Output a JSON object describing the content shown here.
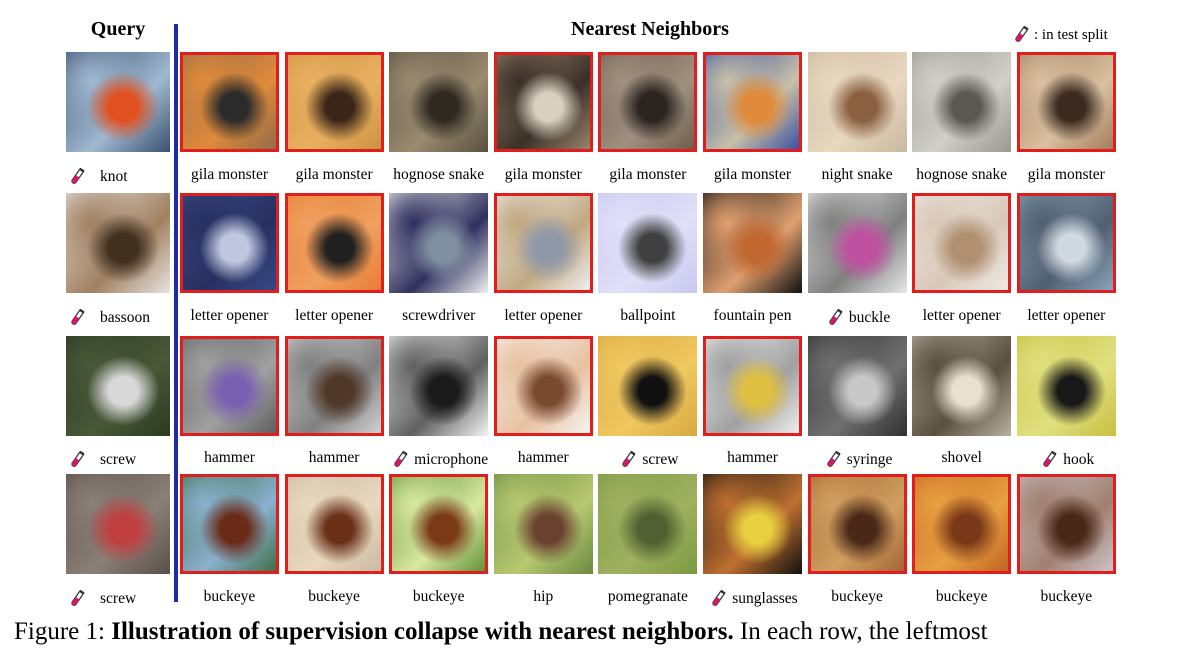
{
  "header": {
    "query": "Query",
    "neighbors": "Nearest Neighbors",
    "legend": ": in test split"
  },
  "colors": {
    "outline": "#e01e1e",
    "divider": "#1e2aa8",
    "flask": "#d6176b"
  },
  "rows": [
    {
      "query": {
        "label": "knot",
        "test_split": true
      },
      "neighbors": [
        {
          "label": "gila monster",
          "outlined": true,
          "test_split": false
        },
        {
          "label": "gila monster",
          "outlined": true,
          "test_split": false
        },
        {
          "label": "hognose snake",
          "outlined": false,
          "test_split": false
        },
        {
          "label": "gila monster",
          "outlined": true,
          "test_split": false
        },
        {
          "label": "gila monster",
          "outlined": true,
          "test_split": false
        },
        {
          "label": "gila monster",
          "outlined": true,
          "test_split": false
        },
        {
          "label": "night snake",
          "outlined": false,
          "test_split": false
        },
        {
          "label": "hognose snake",
          "outlined": false,
          "test_split": false
        },
        {
          "label": "gila monster",
          "outlined": true,
          "test_split": false
        }
      ]
    },
    {
      "query": {
        "label": "bassoon",
        "test_split": true
      },
      "neighbors": [
        {
          "label": "letter opener",
          "outlined": true,
          "test_split": false
        },
        {
          "label": "letter opener",
          "outlined": true,
          "test_split": false
        },
        {
          "label": "screwdriver",
          "outlined": false,
          "test_split": false
        },
        {
          "label": "letter opener",
          "outlined": true,
          "test_split": false
        },
        {
          "label": "ballpoint",
          "outlined": false,
          "test_split": false
        },
        {
          "label": "fountain pen",
          "outlined": false,
          "test_split": false
        },
        {
          "label": "buckle",
          "outlined": false,
          "test_split": true
        },
        {
          "label": "letter opener",
          "outlined": true,
          "test_split": false
        },
        {
          "label": "letter opener",
          "outlined": true,
          "test_split": false
        }
      ]
    },
    {
      "query": {
        "label": "screw",
        "test_split": true
      },
      "neighbors": [
        {
          "label": "hammer",
          "outlined": true,
          "test_split": false
        },
        {
          "label": "hammer",
          "outlined": true,
          "test_split": false
        },
        {
          "label": "microphone",
          "outlined": false,
          "test_split": true
        },
        {
          "label": "hammer",
          "outlined": true,
          "test_split": false
        },
        {
          "label": "screw",
          "outlined": false,
          "test_split": true
        },
        {
          "label": "hammer",
          "outlined": true,
          "test_split": false
        },
        {
          "label": "syringe",
          "outlined": false,
          "test_split": true
        },
        {
          "label": "shovel",
          "outlined": false,
          "test_split": false
        },
        {
          "label": "hook",
          "outlined": false,
          "test_split": true
        }
      ]
    },
    {
      "query": {
        "label": "screw",
        "test_split": true
      },
      "neighbors": [
        {
          "label": "buckeye",
          "outlined": true,
          "test_split": false
        },
        {
          "label": "buckeye",
          "outlined": true,
          "test_split": false
        },
        {
          "label": "buckeye",
          "outlined": true,
          "test_split": false
        },
        {
          "label": "hip",
          "outlined": false,
          "test_split": false
        },
        {
          "label": "pomegranate",
          "outlined": false,
          "test_split": false
        },
        {
          "label": "sunglasses",
          "outlined": false,
          "test_split": true
        },
        {
          "label": "buckeye",
          "outlined": true,
          "test_split": false
        },
        {
          "label": "buckeye",
          "outlined": true,
          "test_split": false
        },
        {
          "label": "buckeye",
          "outlined": true,
          "test_split": false
        }
      ]
    }
  ],
  "caption": {
    "prefix": "Figure 1: ",
    "bold": "Illustration of supervision collapse with nearest neighbors.",
    "rest": " In each row, the leftmost"
  }
}
